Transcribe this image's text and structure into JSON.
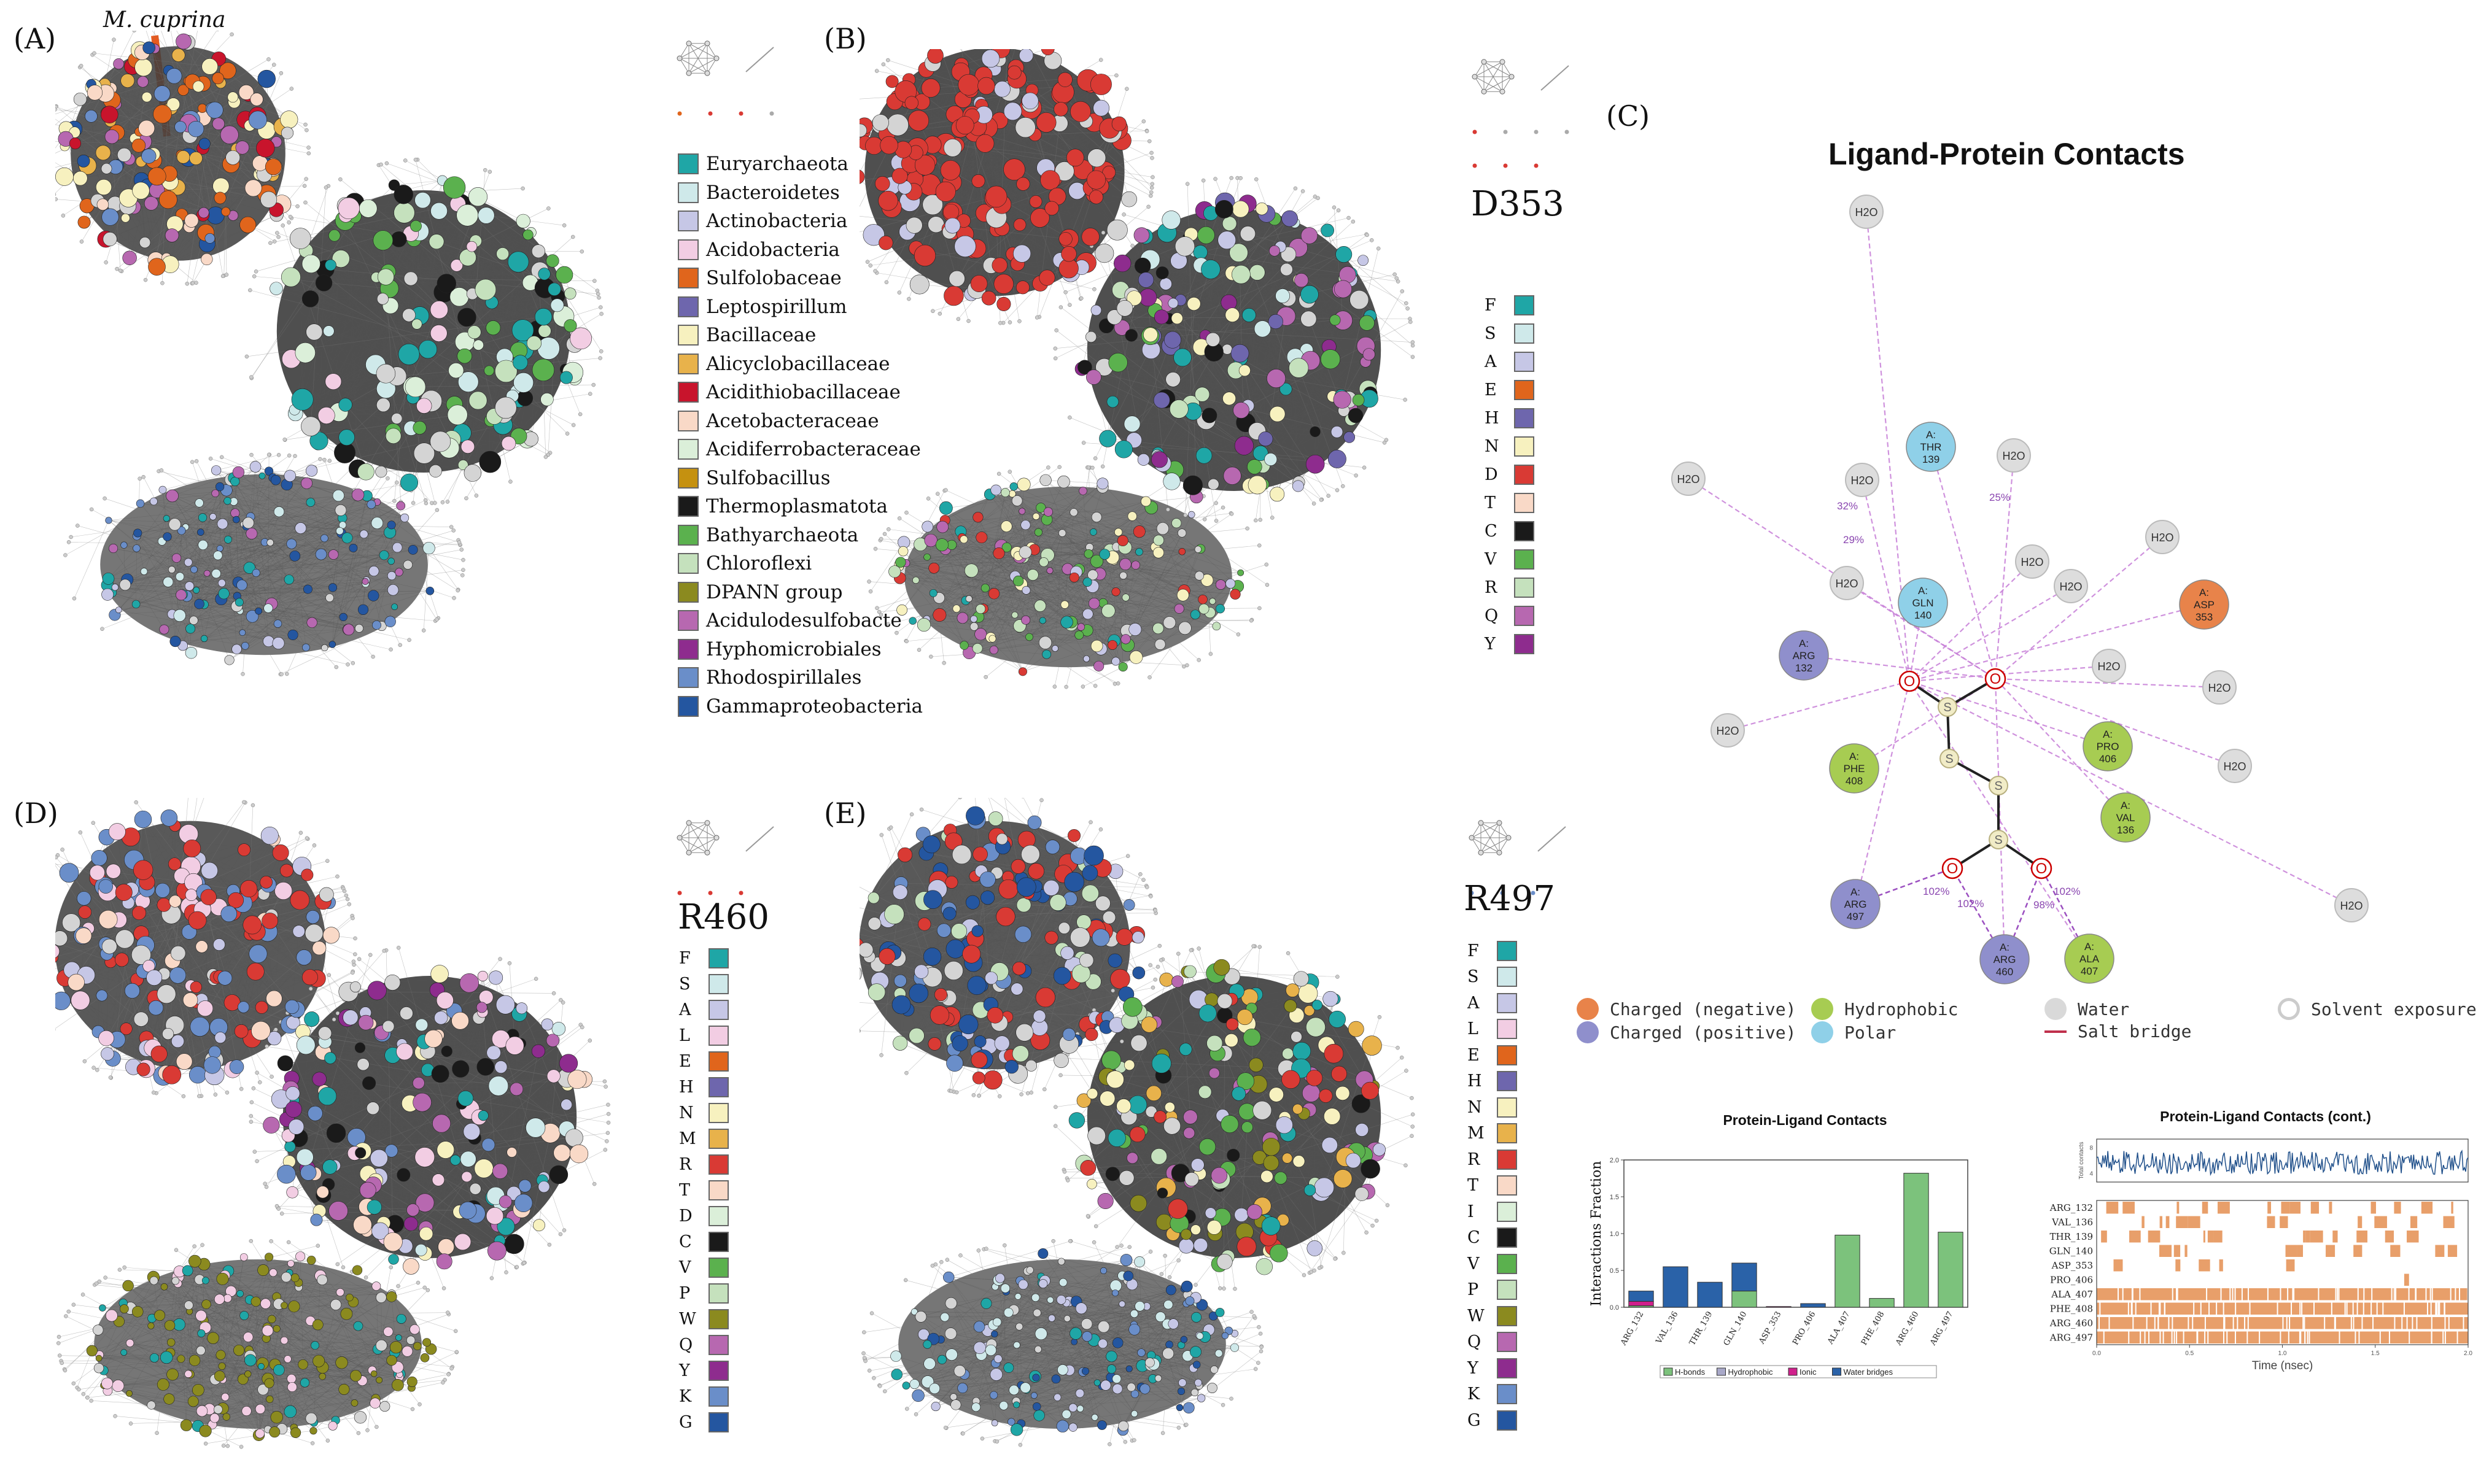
{
  "panels": {
    "a": {
      "letter": "(A)",
      "annotation": "M. cuprina"
    },
    "b": {
      "letter": "(B)",
      "residue": "D353"
    },
    "c": {
      "letter": "(C)"
    },
    "d": {
      "letter": "(D)",
      "residue": "R460"
    },
    "e": {
      "letter": "(E)",
      "residue": "R497"
    }
  },
  "taxa_legend": [
    {
      "name": "Euryarchaeota",
      "color": "#1fa6a6"
    },
    {
      "name": "Bacteroidetes",
      "color": "#cfe9ea"
    },
    {
      "name": "Actinobacteria",
      "color": "#c6c7e6"
    },
    {
      "name": "Acidobacteria",
      "color": "#f2cde3"
    },
    {
      "name": "Sulfolobaceae",
      "color": "#e0651c"
    },
    {
      "name": "Leptospirillum",
      "color": "#6e66ad"
    },
    {
      "name": "Bacillaceae",
      "color": "#f7f1bf"
    },
    {
      "name": "Alicyclobacillaceae",
      "color": "#e8b24b"
    },
    {
      "name": "Acidithiobacillaceae",
      "color": "#c8142c"
    },
    {
      "name": "Acetobacteraceae",
      "color": "#f9d9c7"
    },
    {
      "name": "Acidiferrobacteraceae",
      "color": "#dbefd9"
    },
    {
      "name": "Sulfobacillus",
      "color": "#c59110"
    },
    {
      "name": "Thermoplasmatota",
      "color": "#1a1a1a"
    },
    {
      "name": "Bathyarchaeota",
      "color": "#5bb14e"
    },
    {
      "name": "Chloroflexi",
      "color": "#c5e1bd"
    },
    {
      "name": "DPANN group",
      "color": "#8b8a1f"
    },
    {
      "name": "Acidulodesulfobacte",
      "color": "#b768b0"
    },
    {
      "name": "Hyphomicrobiales",
      "color": "#8e2c8e"
    },
    {
      "name": "Rhodospirillales",
      "color": "#6a8ec9"
    },
    {
      "name": "Gammaproteobacteria",
      "color": "#2456a0"
    }
  ],
  "aa_legend_b": [
    {
      "aa": "F",
      "color": "#1fa6a6"
    },
    {
      "aa": "S",
      "color": "#cfe9ea"
    },
    {
      "aa": "A",
      "color": "#c6c7e6"
    },
    {
      "aa": "E",
      "color": "#e0651c"
    },
    {
      "aa": "H",
      "color": "#6e66ad"
    },
    {
      "aa": "N",
      "color": "#f7f1bf"
    },
    {
      "aa": "D",
      "color": "#d93a34"
    },
    {
      "aa": "T",
      "color": "#f9d9c7"
    },
    {
      "aa": "C",
      "color": "#1a1a1a"
    },
    {
      "aa": "V",
      "color": "#5bb14e"
    },
    {
      "aa": "R",
      "color": "#c5e1bd"
    },
    {
      "aa": "Q",
      "color": "#b768b0"
    },
    {
      "aa": "Y",
      "color": "#8e2c8e"
    }
  ],
  "aa_legend_d": [
    {
      "aa": "F",
      "color": "#1fa6a6"
    },
    {
      "aa": "S",
      "color": "#cfe9ea"
    },
    {
      "aa": "A",
      "color": "#c6c7e6"
    },
    {
      "aa": "L",
      "color": "#f2cde3"
    },
    {
      "aa": "E",
      "color": "#e0651c"
    },
    {
      "aa": "H",
      "color": "#6e66ad"
    },
    {
      "aa": "N",
      "color": "#f7f1bf"
    },
    {
      "aa": "M",
      "color": "#e8b24b"
    },
    {
      "aa": "R",
      "color": "#d93a34"
    },
    {
      "aa": "T",
      "color": "#f9d9c7"
    },
    {
      "aa": "D",
      "color": "#dbefd9"
    },
    {
      "aa": "C",
      "color": "#1a1a1a"
    },
    {
      "aa": "V",
      "color": "#5bb14e"
    },
    {
      "aa": "P",
      "color": "#c5e1bd"
    },
    {
      "aa": "W",
      "color": "#8b8a1f"
    },
    {
      "aa": "Q",
      "color": "#b768b0"
    },
    {
      "aa": "Y",
      "color": "#8e2c8e"
    },
    {
      "aa": "K",
      "color": "#6a8ec9"
    },
    {
      "aa": "G",
      "color": "#2456a0"
    }
  ],
  "aa_legend_e": [
    {
      "aa": "F",
      "color": "#1fa6a6"
    },
    {
      "aa": "S",
      "color": "#cfe9ea"
    },
    {
      "aa": "A",
      "color": "#c6c7e6"
    },
    {
      "aa": "L",
      "color": "#f2cde3"
    },
    {
      "aa": "E",
      "color": "#e0651c"
    },
    {
      "aa": "H",
      "color": "#6e66ad"
    },
    {
      "aa": "N",
      "color": "#f7f1bf"
    },
    {
      "aa": "M",
      "color": "#e8b24b"
    },
    {
      "aa": "R",
      "color": "#d93a34"
    },
    {
      "aa": "T",
      "color": "#f9d9c7"
    },
    {
      "aa": "I",
      "color": "#dbefd9"
    },
    {
      "aa": "C",
      "color": "#1a1a1a"
    },
    {
      "aa": "V",
      "color": "#5bb14e"
    },
    {
      "aa": "P",
      "color": "#c5e1bd"
    },
    {
      "aa": "W",
      "color": "#8b8a1f"
    },
    {
      "aa": "Q",
      "color": "#b768b0"
    },
    {
      "aa": "Y",
      "color": "#8e2c8e"
    },
    {
      "aa": "K",
      "color": "#6a8ec9"
    },
    {
      "aa": "G",
      "color": "#2456a0"
    }
  ],
  "ligand": {
    "title": "Ligand-Protein Contacts",
    "residues": [
      {
        "label": "A:\nTHR\n139",
        "type": "polar"
      },
      {
        "label": "A:\nGLN\n140",
        "type": "polar"
      },
      {
        "label": "A:\nARG\n132",
        "type": "positive"
      },
      {
        "label": "A:\nASP\n353",
        "type": "negative"
      },
      {
        "label": "A:\nPHE\n408",
        "type": "hydrophobic"
      },
      {
        "label": "A:\nPRO\n406",
        "type": "hydrophobic"
      },
      {
        "label": "A:\nVAL\n136",
        "type": "hydrophobic"
      },
      {
        "label": "A:\nARG\n497",
        "type": "positive"
      },
      {
        "label": "A:\nARG\n460",
        "type": "positive"
      },
      {
        "label": "A:\nALA\n407",
        "type": "hydrophobic"
      }
    ],
    "water_label": "H2O",
    "atom_o": "O",
    "atom_s": "S",
    "percent_labels": [
      "102%",
      "102%",
      "102%",
      "98%",
      "32%",
      "29%",
      "25%"
    ],
    "legend": [
      {
        "label": "Charged (negative)",
        "color": "#e8834a"
      },
      {
        "label": "Charged (positive)",
        "color": "#8f8fcc"
      },
      {
        "label": "Hydrophobic",
        "color": "#a7cc52"
      },
      {
        "label": "Polar",
        "color": "#8fd0e8"
      },
      {
        "label": "Water",
        "color": "#d9d9d9"
      },
      {
        "label": "Salt bridge",
        "color": "#c0304c"
      },
      {
        "label": "Solvent exposure",
        "color": "#cccccc"
      }
    ],
    "colors": {
      "negative": "#e8834a",
      "positive": "#8f8fcc",
      "hydrophobic": "#a7cc52",
      "polar": "#8fd0e8",
      "water": "#dddddd",
      "arrow": "#c77fd8"
    }
  },
  "chart_data": [
    {
      "type": "bar",
      "title": "Protein-Ligand Contacts",
      "ylabel": "Interactions Fraction",
      "xlabel": "",
      "ylim": [
        0,
        2.0
      ],
      "yticks": [
        "0.0",
        "0.5",
        "1.0",
        "1.5",
        "2.0"
      ],
      "categories": [
        "ARG_132",
        "VAL_136",
        "THR_139",
        "GLN_140",
        "ASP_353",
        "PRO_406",
        "ALA_407",
        "PHE_408",
        "ARG_460",
        "ARG_497"
      ],
      "series": [
        {
          "name": "H-bonds",
          "color": "#7cc27c",
          "values": [
            0.02,
            0,
            0,
            0.22,
            0,
            0,
            0.98,
            0.12,
            1.82,
            1.02
          ]
        },
        {
          "name": "Hydrophobic",
          "color": "#a8a8c8",
          "values": [
            0,
            0,
            0,
            0,
            0,
            0,
            0,
            0,
            0,
            0
          ]
        },
        {
          "name": "Ionic",
          "color": "#d0208c",
          "values": [
            0.06,
            0,
            0,
            0,
            0.01,
            0,
            0,
            0,
            0,
            0
          ]
        },
        {
          "name": "Water bridges",
          "color": "#2a62a8",
          "values": [
            0.14,
            0.55,
            0.34,
            0.38,
            0,
            0.05,
            0,
            0,
            0,
            0
          ]
        }
      ]
    },
    {
      "type": "heatmap",
      "title": "Protein-Ligand Contacts (cont.)",
      "xlabel": "Time (nsec)",
      "ylabel": "Total contacts",
      "xticks": [
        "0.0",
        "0.5",
        "1.0",
        "1.5",
        "2.0"
      ],
      "xlim": [
        0,
        2.0
      ],
      "rows": [
        "ARG_132",
        "VAL_136",
        "THR_139",
        "GLN_140",
        "ASP_353",
        "PRO_406",
        "ALA_407",
        "PHE_408",
        "ARG_460",
        "ARG_497"
      ],
      "row_density": [
        0.35,
        0.3,
        0.25,
        0.35,
        0.05,
        0.02,
        0.95,
        0.9,
        0.98,
        0.92
      ],
      "total_contacts_range": [
        4,
        8
      ]
    }
  ]
}
